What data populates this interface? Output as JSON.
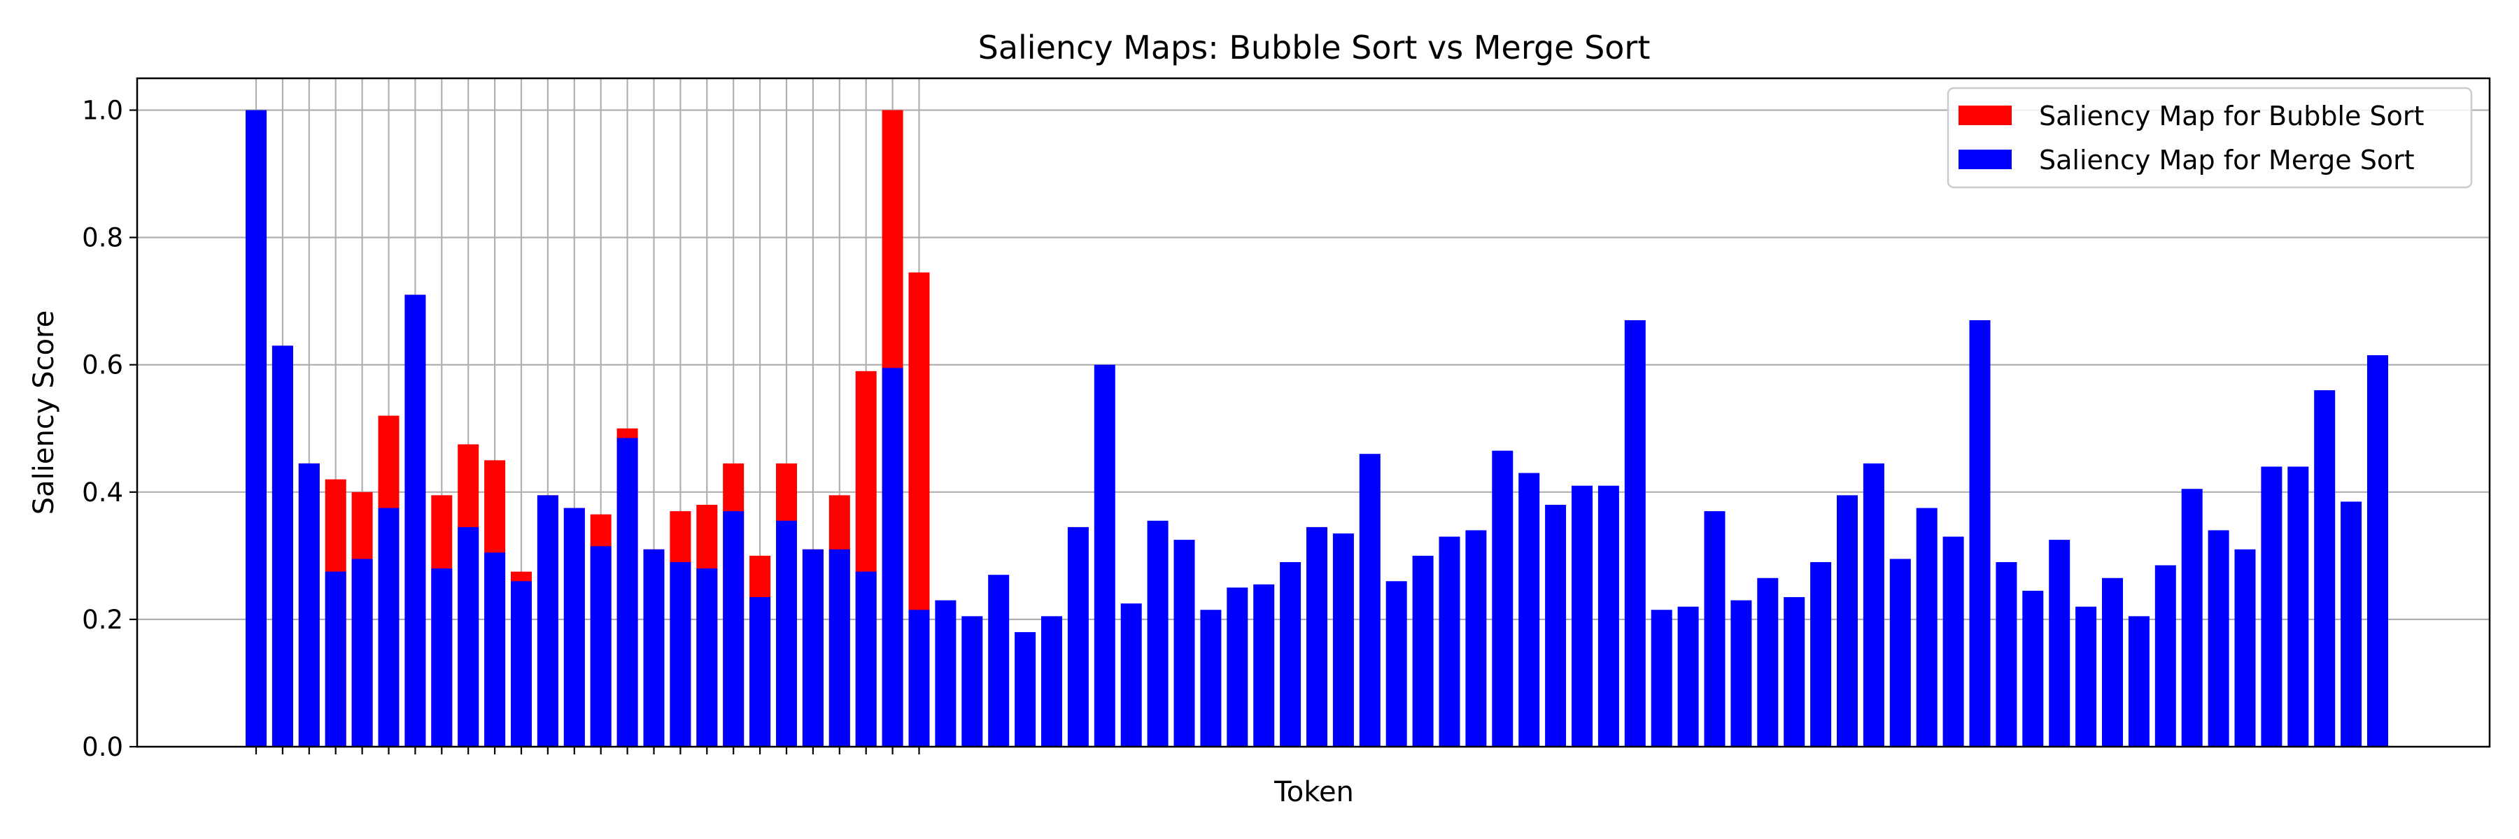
{
  "chart_data": {
    "type": "bar",
    "title": "Saliency Maps: Bubble Sort vs Merge Sort",
    "xlabel": "Token",
    "ylabel": "Saliency Score",
    "ylim": [
      0,
      1.05
    ],
    "yticks": [
      "0.0",
      "0.2",
      "0.4",
      "0.6",
      "0.8",
      "1.0"
    ],
    "grid": true,
    "legend_position": "top-right",
    "series": [
      {
        "name": "Saliency Map for Bubble Sort",
        "color": "#ff0000",
        "values": [
          1.0,
          0.63,
          0.445,
          0.42,
          0.4,
          0.52,
          0.71,
          0.395,
          0.475,
          0.45,
          0.275,
          0.395,
          0.375,
          0.365,
          0.5,
          0.31,
          0.37,
          0.38,
          0.445,
          0.3,
          0.445,
          0.31,
          0.395,
          0.59,
          1.0,
          0.745
        ]
      },
      {
        "name": "Saliency Map for Merge Sort",
        "color": "#0000ff",
        "values": [
          1.0,
          0.63,
          0.445,
          0.275,
          0.295,
          0.375,
          0.71,
          0.28,
          0.345,
          0.305,
          0.26,
          0.395,
          0.375,
          0.315,
          0.485,
          0.31,
          0.29,
          0.28,
          0.37,
          0.235,
          0.355,
          0.31,
          0.31,
          0.275,
          0.595,
          0.215,
          0.23,
          0.205,
          0.27,
          0.18,
          0.205,
          0.345,
          0.6,
          0.225,
          0.355,
          0.325,
          0.215,
          0.25,
          0.255,
          0.29,
          0.345,
          0.335,
          0.46,
          0.26,
          0.3,
          0.33,
          0.34,
          0.465,
          0.43,
          0.38,
          0.41,
          0.41,
          0.67,
          0.215,
          0.22,
          0.37,
          0.23,
          0.265,
          0.235,
          0.29,
          0.395,
          0.445,
          0.295,
          0.375,
          0.33,
          0.67,
          0.29,
          0.245,
          0.325,
          0.22,
          0.265,
          0.205,
          0.285,
          0.405,
          0.34,
          0.31,
          0.44,
          0.44,
          0.56,
          0.385,
          0.615
        ]
      }
    ]
  }
}
